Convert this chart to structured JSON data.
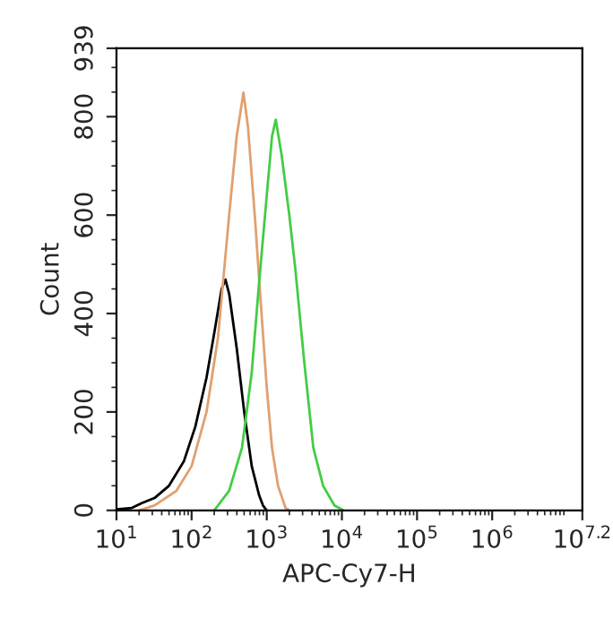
{
  "chart_data": {
    "type": "line",
    "xlabel": "APC-Cy7-H",
    "ylabel": "Count",
    "log": "x",
    "xlim": [
      10,
      15848932
    ],
    "xticks": [
      {
        "value": 10,
        "label": "10$^{1}$"
      },
      {
        "value": 100,
        "label": "10$^{2}$"
      },
      {
        "value": 1000,
        "label": "10$^{3}$"
      },
      {
        "value": 10000,
        "label": "10$^{4}$"
      },
      {
        "value": 100000,
        "label": "10$^{5}$"
      },
      {
        "value": 1000000,
        "label": "10$^{6}$"
      },
      {
        "value": 15848932,
        "label": "10$^{7.2}$"
      }
    ],
    "ylim": [
      0,
      939
    ],
    "yticks": [
      0,
      200,
      400,
      600,
      800,
      939
    ],
    "grid": false,
    "legend": false,
    "marker": "none",
    "line_style": "solid",
    "series": [
      {
        "color": "#000000",
        "x": [
          10,
          16,
          22,
          32,
          50,
          79,
          112,
          158,
          200,
          251,
          282,
          316,
          398,
          501,
          631,
          794,
          891,
          1000
        ],
        "values": [
          2,
          5,
          15,
          25,
          50,
          100,
          170,
          270,
          360,
          450,
          469,
          440,
          330,
          200,
          90,
          30,
          10,
          0
        ]
      },
      {
        "color": "#e0a070",
        "x": [
          20,
          32,
          63,
          100,
          158,
          224,
          316,
          398,
          490,
          562,
          708,
          794,
          1000,
          1175,
          1413,
          1778,
          1995
        ],
        "values": [
          0,
          10,
          40,
          90,
          200,
          350,
          600,
          760,
          849,
          780,
          580,
          466,
          250,
          127,
          50,
          5,
          0
        ]
      },
      {
        "color": "#44cc44",
        "x": [
          200,
          316,
          468,
          631,
          794,
          1000,
          1175,
          1318,
          1585,
          1995,
          2399,
          3162,
          4169,
          5623,
          7943,
          10471
        ],
        "values": [
          0,
          40,
          127,
          280,
          466,
          640,
          760,
          794,
          720,
          600,
          491,
          300,
          127,
          50,
          10,
          0
        ]
      }
    ]
  }
}
